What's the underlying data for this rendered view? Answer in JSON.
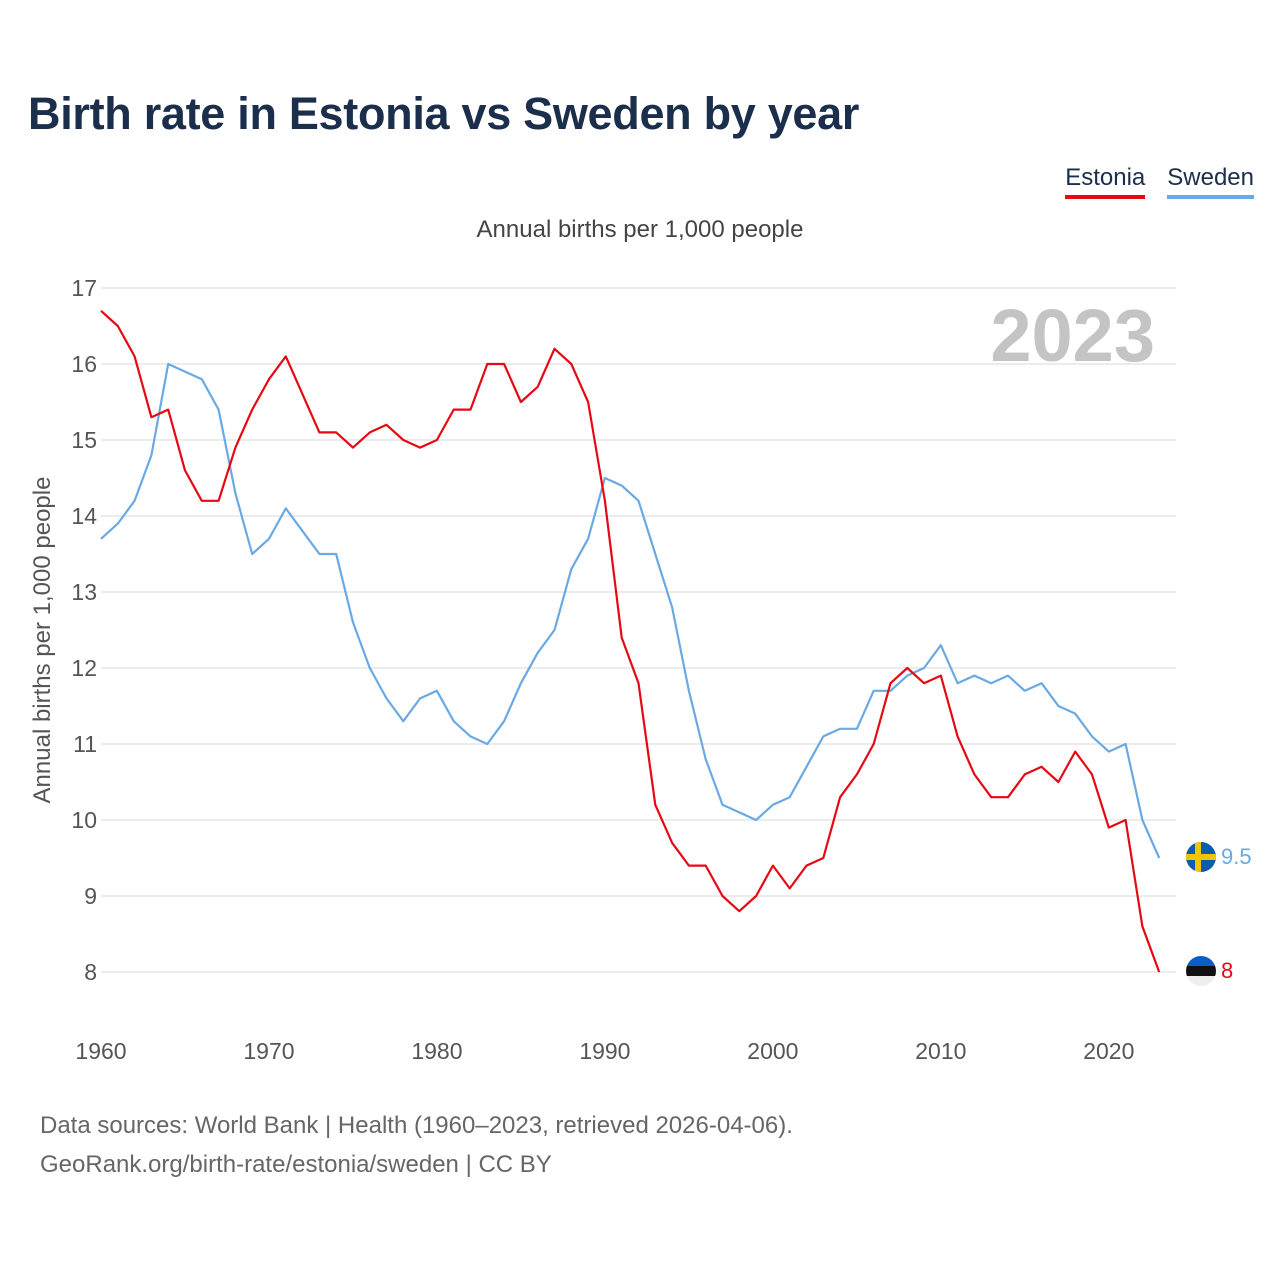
{
  "title": "Birth rate in Estonia vs Sweden by year",
  "subtitle": "Annual births per 1,000 people",
  "legend": [
    {
      "name": "Estonia",
      "color": "#e50914"
    },
    {
      "name": "Sweden",
      "color": "#6aa9e3"
    }
  ],
  "year_badge": "2023",
  "end_labels": {
    "estonia": "8",
    "sweden": "9.5"
  },
  "source_line1": "Data sources: World Bank | Health (1960–2023, retrieved 2026-04-06).",
  "source_line2": "GeoRank.org/birth-rate/estonia/sweden | CC BY",
  "chart_data": {
    "type": "line",
    "title": "Birth rate in Estonia vs Sweden by year",
    "xlabel": "",
    "ylabel": "Annual births per 1,000 people",
    "xlim": [
      1960,
      2024
    ],
    "ylim": [
      7.5,
      17
    ],
    "yticks": [
      8,
      9,
      10,
      11,
      12,
      13,
      14,
      15,
      16,
      17
    ],
    "xticks": [
      1960,
      1970,
      1980,
      1990,
      2000,
      2010,
      2020
    ],
    "grid": true,
    "legend_position": "top-right",
    "x": [
      1960,
      1961,
      1962,
      1963,
      1964,
      1965,
      1966,
      1967,
      1968,
      1969,
      1970,
      1971,
      1972,
      1973,
      1974,
      1975,
      1976,
      1977,
      1978,
      1979,
      1980,
      1981,
      1982,
      1983,
      1984,
      1985,
      1986,
      1987,
      1988,
      1989,
      1990,
      1991,
      1992,
      1993,
      1994,
      1995,
      1996,
      1997,
      1998,
      1999,
      2000,
      2001,
      2002,
      2003,
      2004,
      2005,
      2006,
      2007,
      2008,
      2009,
      2010,
      2011,
      2012,
      2013,
      2014,
      2015,
      2016,
      2017,
      2018,
      2019,
      2020,
      2021,
      2022,
      2023
    ],
    "series": [
      {
        "name": "Estonia",
        "color": "#e50914",
        "values": [
          16.7,
          16.5,
          16.1,
          15.3,
          15.4,
          14.6,
          14.2,
          14.2,
          14.9,
          15.4,
          15.8,
          16.1,
          15.6,
          15.1,
          15.1,
          14.9,
          15.1,
          15.2,
          15.0,
          14.9,
          15.0,
          15.4,
          15.4,
          16.0,
          16.0,
          15.5,
          15.7,
          16.2,
          16.0,
          15.5,
          14.2,
          12.4,
          11.8,
          10.2,
          9.7,
          9.4,
          9.4,
          9.0,
          8.8,
          9.0,
          9.4,
          9.1,
          9.4,
          9.5,
          10.3,
          10.6,
          11.0,
          11.8,
          12.0,
          11.8,
          11.9,
          11.1,
          10.6,
          10.3,
          10.3,
          10.6,
          10.7,
          10.5,
          10.9,
          10.6,
          9.9,
          10.0,
          8.6,
          8.0
        ]
      },
      {
        "name": "Sweden",
        "color": "#6aa9e3",
        "values": [
          13.7,
          13.9,
          14.2,
          14.8,
          16.0,
          15.9,
          15.8,
          15.4,
          14.3,
          13.5,
          13.7,
          14.1,
          13.8,
          13.5,
          13.5,
          12.6,
          12.0,
          11.6,
          11.3,
          11.6,
          11.7,
          11.3,
          11.1,
          11.0,
          11.3,
          11.8,
          12.2,
          12.5,
          13.3,
          13.7,
          14.5,
          14.4,
          14.2,
          13.5,
          12.8,
          11.7,
          10.8,
          10.2,
          10.1,
          10.0,
          10.2,
          10.3,
          10.7,
          11.1,
          11.2,
          11.2,
          11.7,
          11.7,
          11.9,
          12.0,
          12.3,
          11.8,
          11.9,
          11.8,
          11.9,
          11.7,
          11.8,
          11.5,
          11.4,
          11.1,
          10.9,
          11.0,
          10.0,
          9.5
        ]
      }
    ]
  }
}
